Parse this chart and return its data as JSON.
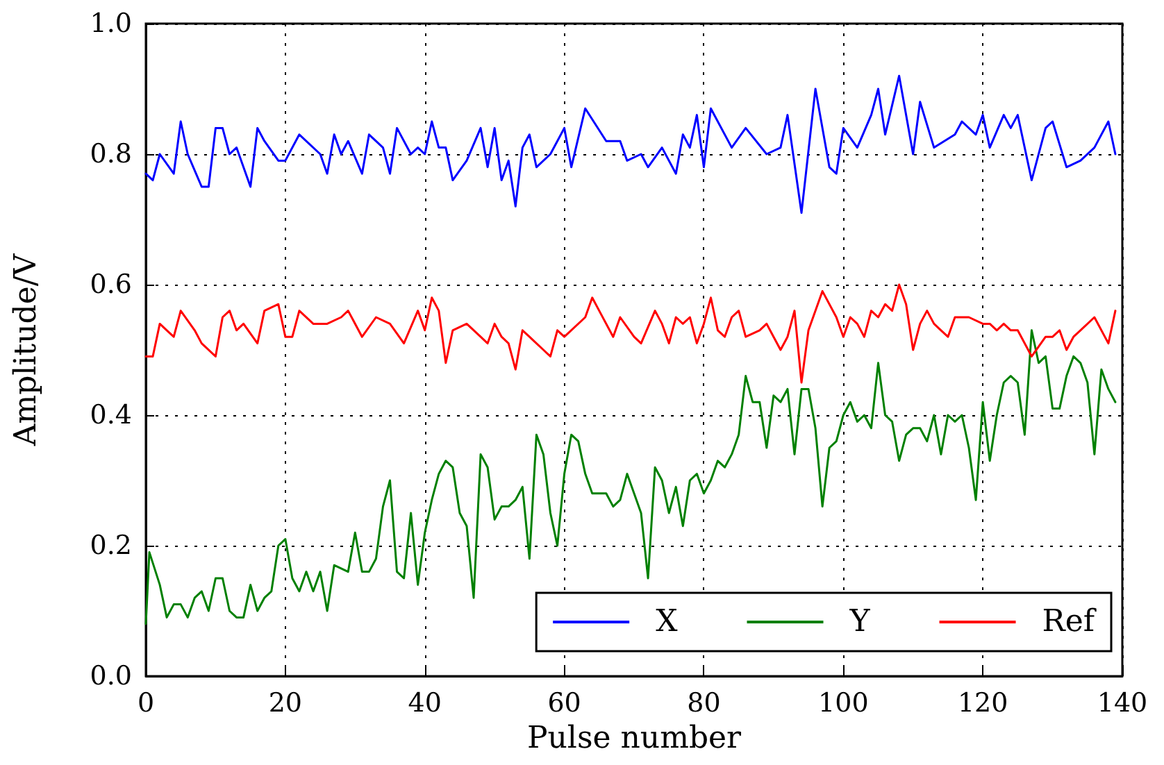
{
  "chart_data": {
    "type": "line",
    "xlabel": "Pulse number",
    "ylabel": "Amplitude/V",
    "xlim": [
      0,
      140
    ],
    "xticks": [
      0,
      20,
      40,
      60,
      80,
      100,
      120,
      140
    ],
    "ylim": [
      0,
      1
    ],
    "yticks": [
      {
        "value": 0,
        "label": "0.0"
      },
      {
        "value": 0.2,
        "label": "0.2"
      },
      {
        "value": 0.4,
        "label": "0.4"
      },
      {
        "value": 0.6,
        "label": "0.6"
      },
      {
        "value": 0.8,
        "label": "0.8"
      },
      {
        "value": 1,
        "label": "1.0"
      }
    ],
    "grid": true,
    "legend": "bottom right",
    "marker": "none",
    "line_style": "solid",
    "series": [
      {
        "name": "X",
        "color": "#0000ff",
        "x": [
          0,
          1,
          2,
          4,
          5,
          6,
          8,
          9,
          10,
          11,
          12,
          13,
          15,
          16,
          17,
          19,
          20,
          22,
          25,
          26,
          27,
          28,
          29,
          31,
          32,
          34,
          35,
          36,
          38,
          39,
          40,
          41,
          42,
          43,
          44,
          46,
          48,
          49,
          50,
          51,
          52,
          53,
          54,
          55,
          56,
          58,
          59,
          60,
          61,
          63,
          66,
          68,
          69,
          71,
          72,
          74,
          76,
          77,
          78,
          79,
          80,
          81,
          84,
          86,
          89,
          91,
          92,
          94,
          96,
          98,
          99,
          100,
          102,
          104,
          105,
          106,
          108,
          110,
          111,
          113,
          116,
          117,
          119,
          120,
          121,
          123,
          124,
          125,
          127,
          129,
          130,
          132,
          134,
          136,
          138,
          139
        ],
        "values": [
          0.77,
          0.76,
          0.8,
          0.77,
          0.85,
          0.8,
          0.75,
          0.75,
          0.84,
          0.84,
          0.8,
          0.81,
          0.75,
          0.84,
          0.82,
          0.79,
          0.79,
          0.83,
          0.8,
          0.77,
          0.83,
          0.8,
          0.82,
          0.77,
          0.83,
          0.81,
          0.77,
          0.84,
          0.8,
          0.81,
          0.8,
          0.85,
          0.81,
          0.81,
          0.76,
          0.79,
          0.84,
          0.78,
          0.84,
          0.76,
          0.79,
          0.72,
          0.81,
          0.83,
          0.78,
          0.8,
          0.82,
          0.84,
          0.78,
          0.87,
          0.82,
          0.82,
          0.79,
          0.8,
          0.78,
          0.81,
          0.77,
          0.83,
          0.81,
          0.86,
          0.78,
          0.87,
          0.81,
          0.84,
          0.8,
          0.81,
          0.86,
          0.71,
          0.9,
          0.78,
          0.77,
          0.84,
          0.81,
          0.86,
          0.9,
          0.83,
          0.92,
          0.8,
          0.88,
          0.81,
          0.83,
          0.85,
          0.83,
          0.86,
          0.81,
          0.86,
          0.84,
          0.86,
          0.76,
          0.84,
          0.85,
          0.78,
          0.79,
          0.81,
          0.85,
          0.8
        ]
      },
      {
        "name": "Y",
        "color": "#008000",
        "x": [
          0,
          0.5,
          2,
          3,
          4,
          5,
          6,
          7,
          8,
          9,
          10,
          11,
          12,
          13,
          14,
          15,
          16,
          17,
          18,
          19,
          20,
          21,
          22,
          23,
          24,
          25,
          26,
          27,
          29,
          30,
          31,
          32,
          33,
          34,
          35,
          36,
          37,
          38,
          39,
          40,
          41,
          42,
          43,
          44,
          45,
          46,
          47,
          48,
          49,
          50,
          51,
          52,
          53,
          54,
          55,
          56,
          57,
          58,
          59,
          60,
          61,
          62,
          63,
          64,
          65,
          66,
          67,
          68,
          69,
          70,
          71,
          72,
          73,
          74,
          75,
          76,
          77,
          78,
          79,
          80,
          81,
          82,
          83,
          84,
          85,
          86,
          87,
          88,
          89,
          90,
          91,
          92,
          93,
          94,
          95,
          96,
          97,
          98,
          99,
          100,
          101,
          102,
          103,
          104,
          105,
          106,
          107,
          108,
          109,
          110,
          111,
          112,
          113,
          114,
          115,
          116,
          117,
          118,
          119,
          120,
          121,
          122,
          123,
          124,
          125,
          126,
          127,
          128,
          129,
          130,
          131,
          132,
          133,
          134,
          135,
          136,
          137,
          138,
          139
        ],
        "values": [
          0.08,
          0.19,
          0.14,
          0.09,
          0.11,
          0.11,
          0.09,
          0.12,
          0.13,
          0.1,
          0.15,
          0.15,
          0.1,
          0.09,
          0.09,
          0.14,
          0.1,
          0.12,
          0.13,
          0.2,
          0.21,
          0.15,
          0.13,
          0.16,
          0.13,
          0.16,
          0.1,
          0.17,
          0.16,
          0.22,
          0.16,
          0.16,
          0.18,
          0.26,
          0.3,
          0.16,
          0.15,
          0.25,
          0.14,
          0.22,
          0.27,
          0.31,
          0.33,
          0.32,
          0.25,
          0.23,
          0.12,
          0.34,
          0.32,
          0.24,
          0.26,
          0.26,
          0.27,
          0.29,
          0.18,
          0.37,
          0.34,
          0.25,
          0.2,
          0.31,
          0.37,
          0.36,
          0.31,
          0.28,
          0.28,
          0.28,
          0.26,
          0.27,
          0.31,
          0.28,
          0.25,
          0.15,
          0.32,
          0.3,
          0.25,
          0.29,
          0.23,
          0.3,
          0.31,
          0.28,
          0.3,
          0.33,
          0.32,
          0.34,
          0.37,
          0.46,
          0.42,
          0.42,
          0.35,
          0.43,
          0.42,
          0.44,
          0.34,
          0.44,
          0.44,
          0.38,
          0.26,
          0.35,
          0.36,
          0.4,
          0.42,
          0.39,
          0.4,
          0.38,
          0.48,
          0.4,
          0.39,
          0.33,
          0.37,
          0.38,
          0.38,
          0.36,
          0.4,
          0.34,
          0.4,
          0.39,
          0.4,
          0.35,
          0.27,
          0.42,
          0.33,
          0.4,
          0.45,
          0.46,
          0.45,
          0.37,
          0.53,
          0.48,
          0.49,
          0.41,
          0.41,
          0.46,
          0.49,
          0.48,
          0.45,
          0.34,
          0.47,
          0.44,
          0.42
        ]
      },
      {
        "name": "Ref",
        "color": "#ff0000",
        "x": [
          0,
          1,
          2,
          3,
          4,
          5,
          7,
          8,
          10,
          11,
          12,
          13,
          14,
          16,
          17,
          19,
          20,
          21,
          22,
          24,
          26,
          28,
          29,
          31,
          33,
          35,
          37,
          39,
          40,
          41,
          42,
          43,
          44,
          46,
          48,
          49,
          50,
          51,
          52,
          53,
          54,
          55,
          57,
          58,
          59,
          60,
          63,
          64,
          65,
          67,
          68,
          70,
          71,
          73,
          74,
          75,
          76,
          77,
          78,
          79,
          80,
          81,
          82,
          83,
          84,
          85,
          86,
          88,
          89,
          90,
          91,
          92,
          93,
          94,
          95,
          97,
          99,
          100,
          101,
          102,
          103,
          104,
          105,
          106,
          107,
          108,
          109,
          110,
          111,
          112,
          113,
          114,
          115,
          116,
          118,
          120,
          121,
          122,
          123,
          124,
          125,
          127,
          129,
          130,
          131,
          132,
          133,
          134,
          136,
          138,
          139
        ],
        "values": [
          0.49,
          0.49,
          0.54,
          0.53,
          0.52,
          0.56,
          0.53,
          0.51,
          0.49,
          0.55,
          0.56,
          0.53,
          0.54,
          0.51,
          0.56,
          0.57,
          0.52,
          0.52,
          0.56,
          0.54,
          0.54,
          0.55,
          0.56,
          0.52,
          0.55,
          0.54,
          0.51,
          0.56,
          0.53,
          0.58,
          0.56,
          0.48,
          0.53,
          0.54,
          0.52,
          0.51,
          0.54,
          0.52,
          0.51,
          0.47,
          0.53,
          0.52,
          0.5,
          0.49,
          0.53,
          0.52,
          0.55,
          0.58,
          0.56,
          0.52,
          0.55,
          0.52,
          0.51,
          0.56,
          0.54,
          0.51,
          0.55,
          0.54,
          0.55,
          0.51,
          0.54,
          0.58,
          0.53,
          0.52,
          0.55,
          0.56,
          0.52,
          0.53,
          0.54,
          0.52,
          0.5,
          0.52,
          0.56,
          0.45,
          0.53,
          0.59,
          0.55,
          0.52,
          0.55,
          0.54,
          0.52,
          0.56,
          0.55,
          0.57,
          0.56,
          0.6,
          0.57,
          0.5,
          0.54,
          0.56,
          0.54,
          0.53,
          0.52,
          0.55,
          0.55,
          0.54,
          0.54,
          0.53,
          0.54,
          0.53,
          0.53,
          0.49,
          0.52,
          0.52,
          0.53,
          0.5,
          0.52,
          0.53,
          0.55,
          0.51,
          0.56
        ]
      }
    ]
  }
}
